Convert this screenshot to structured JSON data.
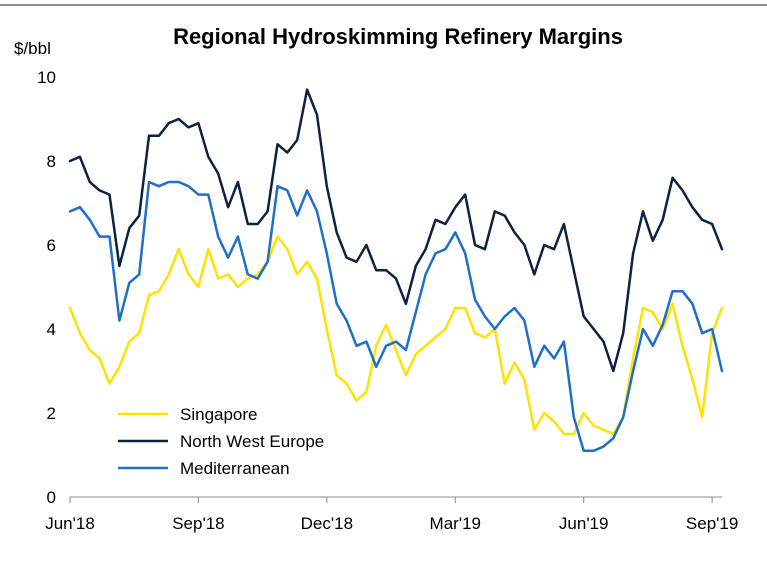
{
  "chart_data": {
    "type": "line",
    "title": "Regional Hydroskimming Refinery Margins",
    "ylabel": "$/bbl",
    "xlabel": "",
    "ylim": [
      0,
      10
    ],
    "yticks": [
      0,
      2,
      4,
      6,
      8,
      10
    ],
    "x_tick_labels": [
      "Jun'18",
      "Sep'18",
      "Dec'18",
      "Mar'19",
      "Jun'19",
      "Sep'19"
    ],
    "x_tick_positions": [
      0,
      13,
      26,
      39,
      52,
      65
    ],
    "grid": false,
    "legend_position": "bottom-left",
    "series": [
      {
        "name": "Singapore",
        "color": "#FFE200",
        "values": [
          4.5,
          3.9,
          3.5,
          3.3,
          2.7,
          3.1,
          3.7,
          3.9,
          4.8,
          4.9,
          5.3,
          5.9,
          5.3,
          5.0,
          5.9,
          5.2,
          5.3,
          5.0,
          5.2,
          5.3,
          5.6,
          6.2,
          5.9,
          5.3,
          5.6,
          5.2,
          4.0,
          2.9,
          2.7,
          2.3,
          2.5,
          3.6,
          4.1,
          3.5,
          2.9,
          3.4,
          3.6,
          3.8,
          4.0,
          4.5,
          4.5,
          3.9,
          3.8,
          4.0,
          2.7,
          3.2,
          2.8,
          1.6,
          2.0,
          1.8,
          1.5,
          1.5,
          2.0,
          1.7,
          1.6,
          1.5,
          1.9,
          3.3,
          4.5,
          4.4,
          4.0,
          4.6,
          3.6,
          2.8,
          1.9,
          3.9,
          4.5
        ]
      },
      {
        "name": "North West Europe",
        "color": "#0B2341",
        "values": [
          8.0,
          8.1,
          7.5,
          7.3,
          7.2,
          5.5,
          6.4,
          6.7,
          8.6,
          8.6,
          8.9,
          9.0,
          8.8,
          8.9,
          8.1,
          7.7,
          6.9,
          7.5,
          6.5,
          6.5,
          6.8,
          8.4,
          8.2,
          8.5,
          9.7,
          9.1,
          7.4,
          6.3,
          5.7,
          5.6,
          6.0,
          5.4,
          5.4,
          5.2,
          4.6,
          5.5,
          5.9,
          6.6,
          6.5,
          6.9,
          7.2,
          6.0,
          5.9,
          6.8,
          6.7,
          6.3,
          6.0,
          5.3,
          6.0,
          5.9,
          6.5,
          5.4,
          4.3,
          4.0,
          3.7,
          3.0,
          3.9,
          5.8,
          6.8,
          6.1,
          6.6,
          7.6,
          7.3,
          6.9,
          6.6,
          6.5,
          5.9
        ]
      },
      {
        "name": "Mediterranean",
        "color": "#1F6FC5",
        "values": [
          6.8,
          6.9,
          6.6,
          6.2,
          6.2,
          4.2,
          5.1,
          5.3,
          7.5,
          7.4,
          7.5,
          7.5,
          7.4,
          7.2,
          7.2,
          6.2,
          5.7,
          6.2,
          5.3,
          5.2,
          5.6,
          7.4,
          7.3,
          6.7,
          7.3,
          6.8,
          5.8,
          4.6,
          4.2,
          3.6,
          3.7,
          3.1,
          3.6,
          3.7,
          3.5,
          4.4,
          5.3,
          5.8,
          5.9,
          6.3,
          5.8,
          4.7,
          4.3,
          4.0,
          4.3,
          4.5,
          4.2,
          3.1,
          3.6,
          3.3,
          3.7,
          1.9,
          1.1,
          1.1,
          1.2,
          1.4,
          1.9,
          3.0,
          4.0,
          3.6,
          4.1,
          4.9,
          4.9,
          4.6,
          3.9,
          4.0,
          3.0
        ]
      }
    ]
  }
}
